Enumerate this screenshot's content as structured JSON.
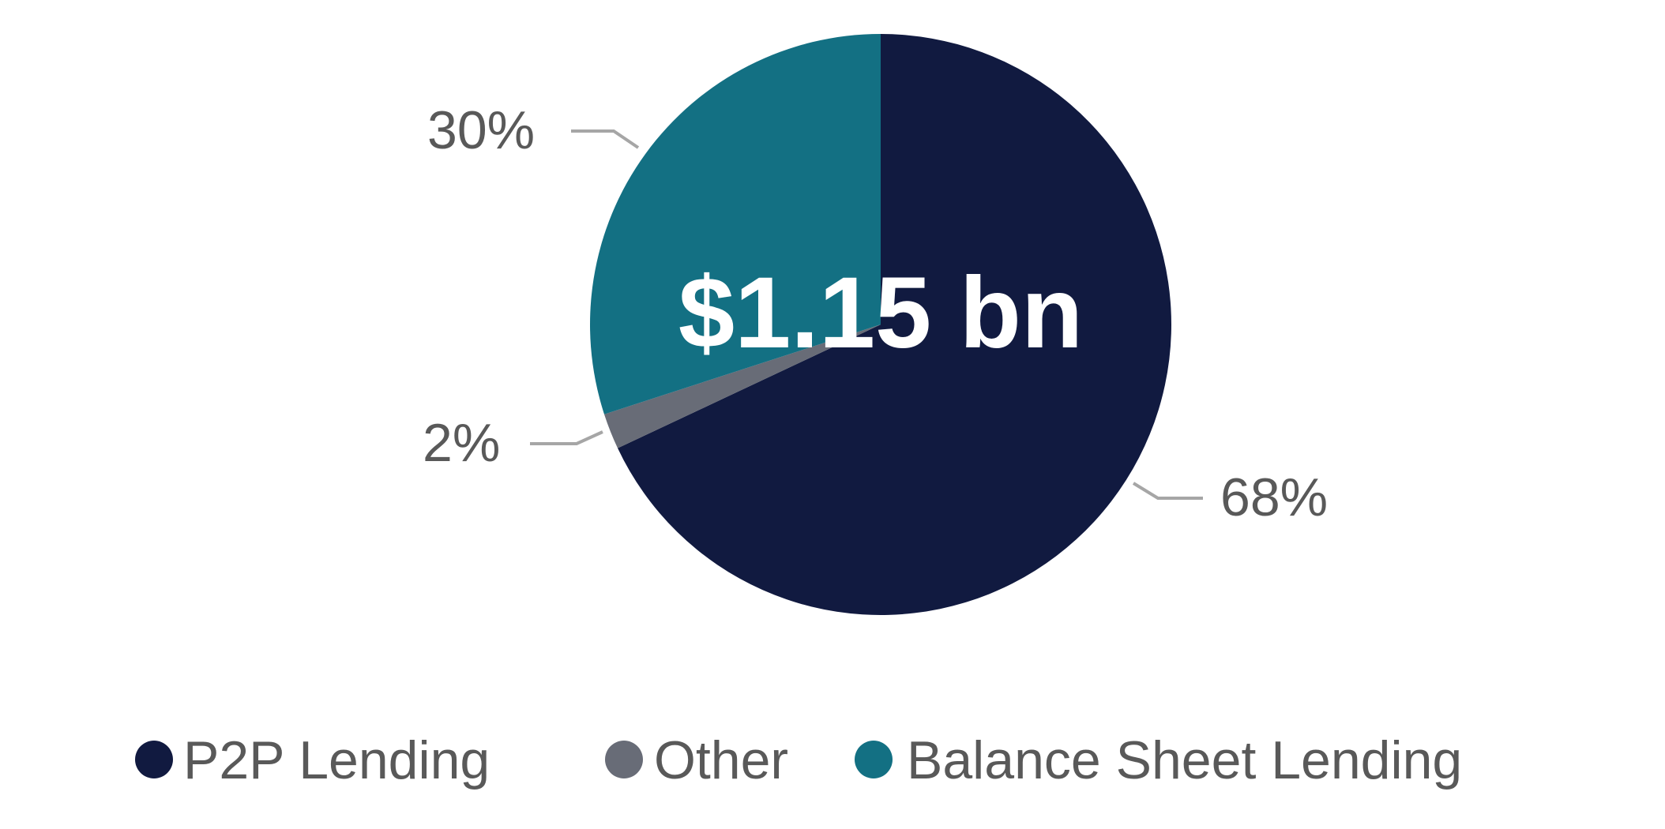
{
  "chart_data": {
    "type": "pie",
    "center_label": "$1.15 bn",
    "slices": [
      {
        "name": "P2P Lending",
        "value": 68,
        "label": "68%",
        "color": "#111a40"
      },
      {
        "name": "Other",
        "value": 2,
        "label": "2%",
        "color": "#686c77"
      },
      {
        "name": "Balance Sheet Lending",
        "value": 30,
        "label": "30%",
        "color": "#137083"
      }
    ],
    "start_angle": "top",
    "direction": "clockwise",
    "legend_position": "bottom"
  }
}
